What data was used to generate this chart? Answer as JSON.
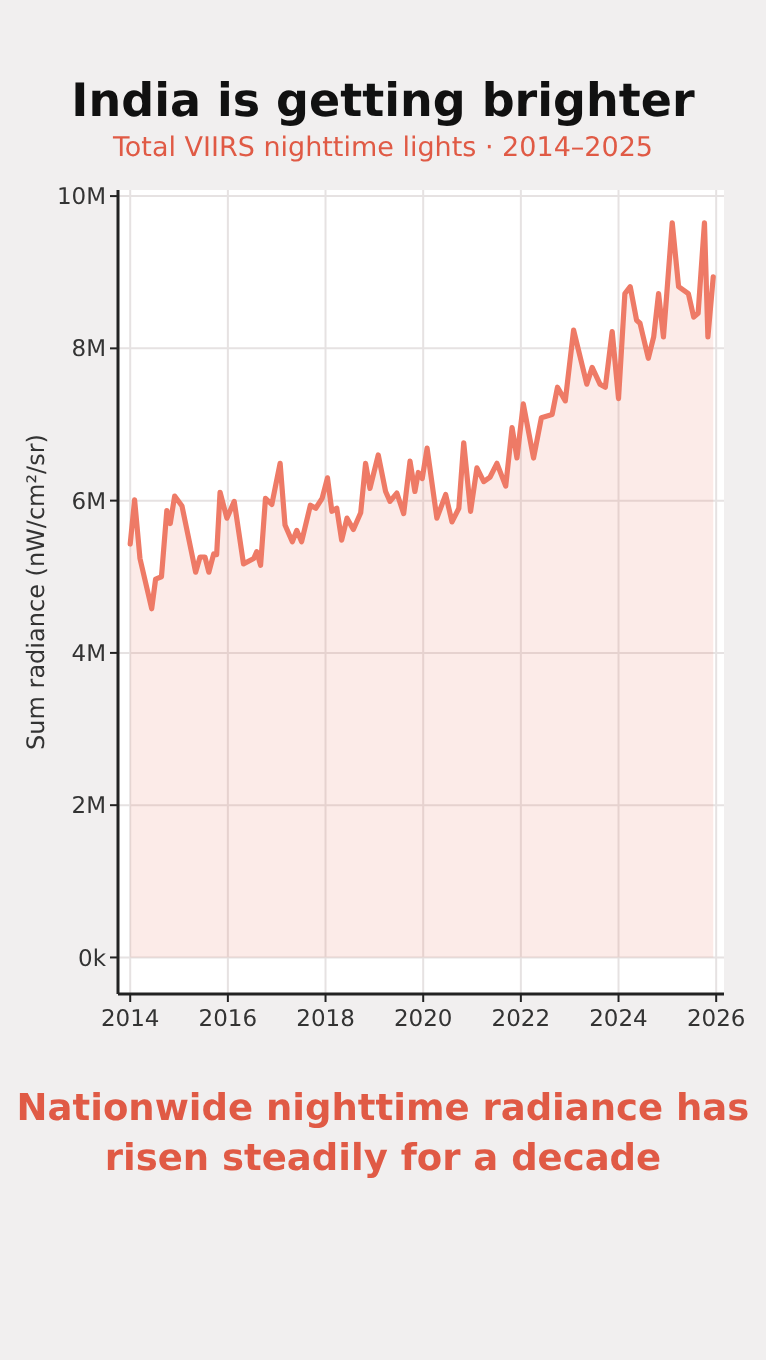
{
  "chart_data": {
    "type": "area",
    "title": "India is getting brighter",
    "subtitle": "Total VIIRS nighttime lights · 2014–2025",
    "ylabel": "Sum radiance (nW/cm²/sr)",
    "x": [
      2014.0,
      2014.09,
      2014.2,
      2014.44,
      2014.52,
      2014.64,
      2014.75,
      2014.82,
      2014.91,
      2015.06,
      2015.34,
      2015.43,
      2015.53,
      2015.61,
      2015.71,
      2015.77,
      2015.84,
      2015.98,
      2016.13,
      2016.32,
      2016.53,
      2016.59,
      2016.67,
      2016.77,
      2016.9,
      2017.07,
      2017.17,
      2017.32,
      2017.41,
      2017.51,
      2017.69,
      2017.8,
      2017.93,
      2018.04,
      2018.13,
      2018.23,
      2018.33,
      2018.44,
      2018.57,
      2018.72,
      2018.82,
      2018.91,
      2019.08,
      2019.23,
      2019.32,
      2019.46,
      2019.6,
      2019.73,
      2019.83,
      2019.9,
      2019.98,
      2020.08,
      2020.28,
      2020.46,
      2020.59,
      2020.73,
      2020.83,
      2020.97,
      2021.1,
      2021.24,
      2021.37,
      2021.51,
      2021.69,
      2021.82,
      2021.92,
      2022.05,
      2022.26,
      2022.42,
      2022.64,
      2022.75,
      2022.91,
      2023.08,
      2023.35,
      2023.46,
      2023.62,
      2023.73,
      2023.87,
      2024.0,
      2024.13,
      2024.24,
      2024.37,
      2024.44,
      2024.61,
      2024.72,
      2024.82,
      2024.92,
      2025.1,
      2025.23,
      2025.43,
      2025.54,
      2025.63,
      2025.76,
      2025.83,
      2025.94
    ],
    "series": [
      {
        "color": "#ee7a66",
        "values": [
          5430000,
          6010000,
          5240000,
          4580000,
          4970000,
          5000000,
          5870000,
          5700000,
          6060000,
          5930000,
          5060000,
          5260000,
          5260000,
          5060000,
          5300000,
          5290000,
          6110000,
          5770000,
          5990000,
          5170000,
          5240000,
          5330000,
          5150000,
          6030000,
          5950000,
          6490000,
          5680000,
          5460000,
          5610000,
          5460000,
          5940000,
          5900000,
          6030000,
          6300000,
          5860000,
          5900000,
          5480000,
          5770000,
          5620000,
          5840000,
          6490000,
          6160000,
          6600000,
          6120000,
          5990000,
          6100000,
          5830000,
          6520000,
          6120000,
          6370000,
          6290000,
          6690000,
          5770000,
          6080000,
          5720000,
          5900000,
          6760000,
          5860000,
          6430000,
          6250000,
          6310000,
          6490000,
          6190000,
          6960000,
          6560000,
          7270000,
          6560000,
          7090000,
          7130000,
          7490000,
          7310000,
          8240000,
          7530000,
          7750000,
          7530000,
          7490000,
          8220000,
          7340000,
          8720000,
          8810000,
          8370000,
          8330000,
          7870000,
          8150000,
          8720000,
          8150000,
          9650000,
          8810000,
          8720000,
          8410000,
          8460000,
          9650000,
          8150000,
          8940000
        ]
      }
    ],
    "xlim": [
      2013.75,
      2026.16
    ],
    "xticks": [
      2014,
      2016,
      2018,
      2020,
      2022,
      2024,
      2026
    ],
    "ylim": [
      -480000,
      10080000
    ],
    "yticks": [
      {
        "value": 0,
        "label": "0k"
      },
      {
        "value": 2000000,
        "label": "2M"
      },
      {
        "value": 4000000,
        "label": "4M"
      },
      {
        "value": 6000000,
        "label": "6M"
      },
      {
        "value": 8000000,
        "label": "8M"
      },
      {
        "value": 10000000,
        "label": "10M"
      }
    ],
    "grid": true,
    "line_style": "solid",
    "annotations": [
      "Nationwide nighttime radiance has risen steadily for a decade"
    ]
  }
}
